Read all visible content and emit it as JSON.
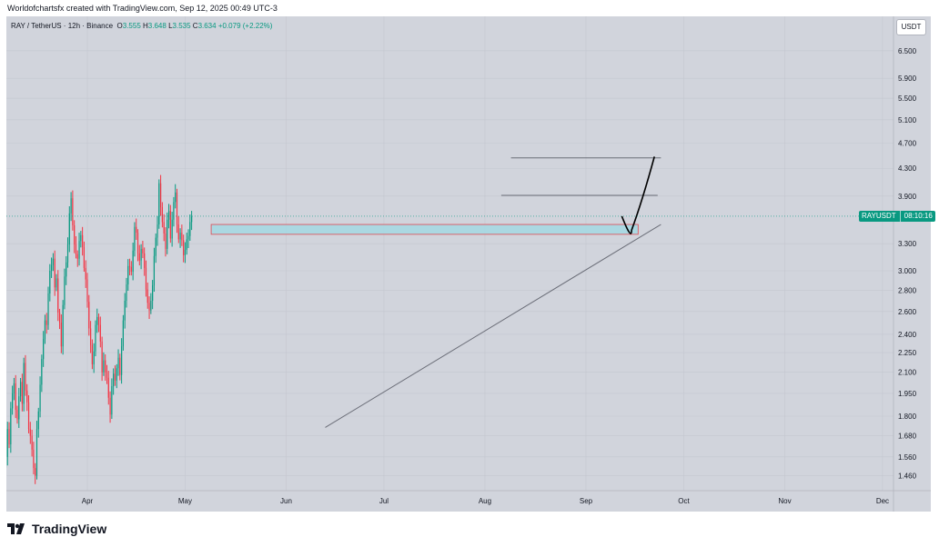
{
  "header": {
    "credit": "Worldofchartsfx created with TradingView.com, Sep 12, 2025 00:49 UTC-3"
  },
  "legend": {
    "symbol": "RAY / TetherUS · 12h · Binance",
    "open_label": "O",
    "open": "3.555",
    "high_label": "H",
    "high": "3.648",
    "low_label": "L",
    "low": "3.535",
    "close_label": "C",
    "close": "3.634",
    "change": "+0.079 (+2.22%)"
  },
  "price_axis": {
    "unit": "USDT"
  },
  "price_tag": {
    "symbol": "RAYUSDT",
    "countdown": "08:10:16",
    "price": 3.634
  },
  "footer": {
    "logo_text": "TradingView"
  },
  "colors": {
    "up": "#089981",
    "down": "#f23645",
    "background": "#d1d4dc",
    "zone_fill": "#a5d8e3",
    "zone_border": "#e04a52",
    "trendline": "#6b6e78",
    "projection": "#000000"
  },
  "chart_data": {
    "type": "candlestick",
    "symbol": "RAYUSDT",
    "exchange": "Binance",
    "interval": "12h",
    "y_scale": "log",
    "ylim": [
      1.4,
      7.0
    ],
    "y_ticks": [
      6.5,
      5.9,
      5.5,
      5.1,
      4.7,
      4.3,
      3.9,
      3.3,
      3.0,
      2.8,
      2.6,
      2.4,
      2.25,
      2.1,
      1.95,
      1.8,
      1.68,
      1.56,
      1.46
    ],
    "y_tick_labels": [
      "6.500",
      "5.900",
      "5.500",
      "5.100",
      "4.700",
      "4.300",
      "3.900",
      "3.300",
      "3.000",
      "2.800",
      "2.600",
      "2.400",
      "2.250",
      "2.100",
      "1.950",
      "1.800",
      "1.680",
      "1.560",
      "1.460"
    ],
    "x_labels": [
      "Apr",
      "May",
      "Jun",
      "Jul",
      "Aug",
      "Sep",
      "Oct",
      "Nov",
      "Dec"
    ],
    "x_dates": [
      "2025-04-01",
      "2025-05-01",
      "2025-06-01",
      "2025-07-01",
      "2025-08-01",
      "2025-09-01",
      "2025-10-01",
      "2025-11-01",
      "2025-12-01"
    ],
    "candles_start": "2025-03-05",
    "candle_interval_hours": 12,
    "closes": [
      2.08,
      1.88,
      1.62,
      1.5,
      1.56,
      1.72,
      1.63,
      1.85,
      1.95,
      2.02,
      1.84,
      1.78,
      1.93,
      2.03,
      1.88,
      2.17,
      1.97,
      1.89,
      1.72,
      1.68,
      1.6,
      1.5,
      1.46,
      1.72,
      1.83,
      2.01,
      2.2,
      2.36,
      2.52,
      2.48,
      2.77,
      3.0,
      3.06,
      3.13,
      2.83,
      2.92,
      2.59,
      2.5,
      2.3,
      2.66,
      2.94,
      3.09,
      3.29,
      3.67,
      3.87,
      3.52,
      3.29,
      3.18,
      3.13,
      3.33,
      3.4,
      3.26,
      3.03,
      2.91,
      2.69,
      2.45,
      2.31,
      2.16,
      2.26,
      2.48,
      2.55,
      2.48,
      2.34,
      2.1,
      2.19,
      2.1,
      2.06,
      1.92,
      1.81,
      2.0,
      2.09,
      2.04,
      2.13,
      2.21,
      2.08,
      2.3,
      2.52,
      2.7,
      2.86,
      3.05,
      3.04,
      2.99,
      3.22,
      3.5,
      3.43,
      3.19,
      3.11,
      3.24,
      3.19,
      3.03,
      2.81,
      2.68,
      2.61,
      2.7,
      2.85,
      3.16,
      3.37,
      3.53,
      4.08,
      3.75,
      3.56,
      3.42,
      3.24,
      3.59,
      3.7,
      3.36,
      3.59,
      3.82,
      3.95,
      3.53,
      3.35,
      3.43,
      3.34,
      3.17,
      3.23,
      3.35,
      3.39,
      3.56,
      3.63
    ],
    "annotations": {
      "resistance_zone": {
        "y_range": [
          3.41,
          3.53
        ],
        "from": "2025-05-09",
        "to": "2025-09-17"
      },
      "rising_trendline": {
        "from": [
          "2025-06-13",
          1.73
        ],
        "to": [
          "2025-09-24",
          3.53
        ]
      },
      "upper_lines": [
        {
          "y": 3.91,
          "from": "2025-08-06",
          "to": "2025-09-23"
        },
        {
          "y": 4.46,
          "from": "2025-08-09",
          "to": "2025-09-24"
        }
      ],
      "projection_path": [
        [
          "2025-09-12",
          3.634
        ],
        [
          "2025-09-15",
          3.46
        ],
        [
          "2025-09-18",
          3.8
        ],
        [
          "2025-09-20",
          4.12
        ],
        [
          "2025-09-22",
          4.48
        ]
      ]
    },
    "last_price": 3.634
  }
}
